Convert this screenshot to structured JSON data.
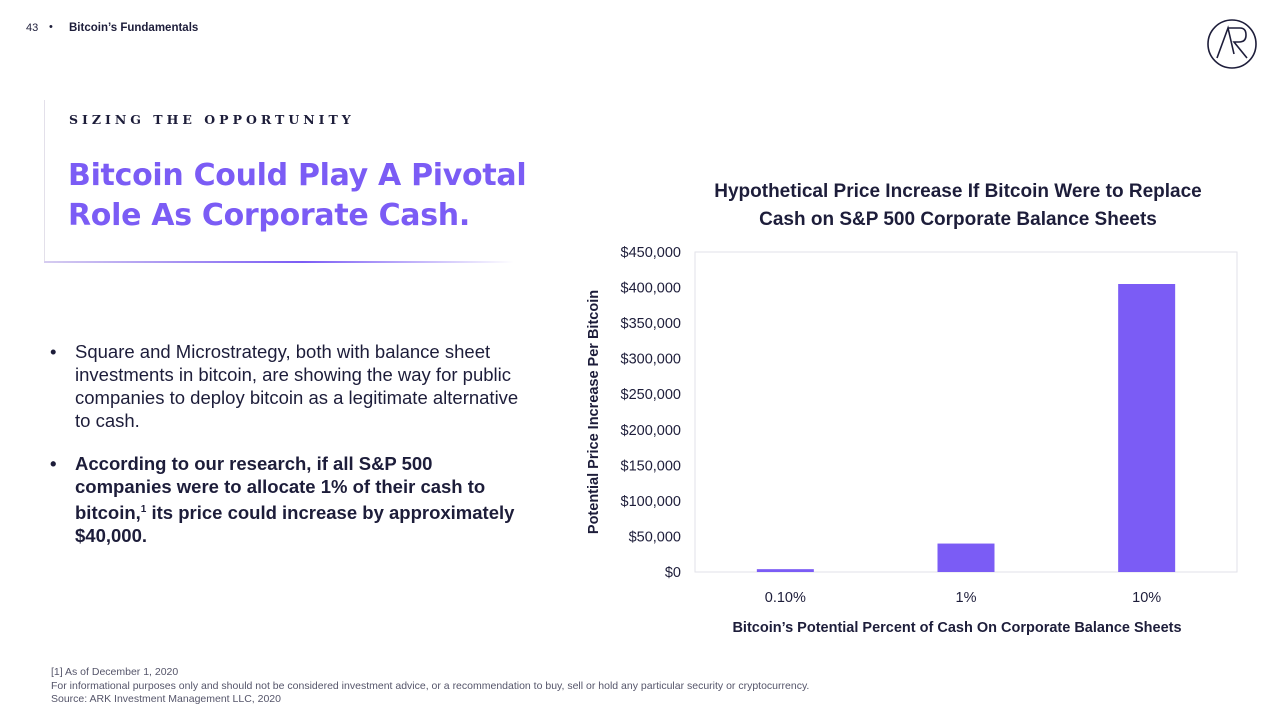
{
  "header": {
    "page_number": "43",
    "dot": "•",
    "section": "Bitcoin’s Fundamentals"
  },
  "logo": {
    "icon": "ark-logo-icon"
  },
  "title_block": {
    "eyebrow": "SIZING THE OPPORTUNITY",
    "headline_line1": "Bitcoin Could Play A Pivotal",
    "headline_line2": "Role As Corporate Cash."
  },
  "bullets": [
    {
      "mark": "•",
      "text": "Square and Microstrategy, both with balance sheet investments in bitcoin, are showing the way for public companies to deploy bitcoin as a legitimate alternative to cash."
    },
    {
      "mark": "•",
      "text_before": "According to our research, if all S&P 500 companies were to allocate 1% of their cash to bitcoin,",
      "footnote_ref": "1",
      "text_after": " its price could increase by approximately $40,000."
    }
  ],
  "footnotes": [
    "[1] As of December 1, 2020",
    "For informational purposes only and should not be considered investment advice, or a recommendation to buy, sell or hold any particular security or cryptocurrency.",
    "Source: ARK Investment Management LLC, 2020"
  ],
  "colors": {
    "accent": "#7b5cf5",
    "text": "#1d1d3a",
    "bar": "#7b5cf5"
  },
  "chart_data": {
    "type": "bar",
    "title": "Hypothetical Price Increase If Bitcoin Were to Replace Cash on S&P 500 Corporate Balance Sheets",
    "title_line1": "Hypothetical Price Increase If Bitcoin Were to Replace",
    "title_line2": "Cash on S&P 500 Corporate Balance Sheets",
    "categories": [
      "0.10%",
      "1%",
      "10%"
    ],
    "values": [
      4000,
      40000,
      405000
    ],
    "xlabel": "Bitcoin’s Potential Percent of Cash On Corporate Balance Sheets",
    "ylabel": "Potential Price Increase Per Bitcoin",
    "ylim": [
      0,
      450000
    ],
    "yticks": [
      0,
      50000,
      100000,
      150000,
      200000,
      250000,
      300000,
      350000,
      400000,
      450000
    ],
    "ytick_labels": [
      "$0",
      "$50,000",
      "$100,000",
      "$150,000",
      "$200,000",
      "$250,000",
      "$300,000",
      "$350,000",
      "$400,000",
      "$450,000"
    ],
    "grid": false,
    "legend": "none"
  }
}
